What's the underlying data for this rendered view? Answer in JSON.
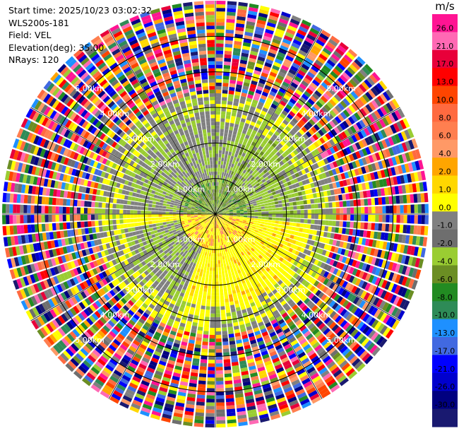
{
  "header": {
    "start_time": "Start time: 2025/10/23 03:02:32",
    "site": "WLS200s-181",
    "field": "Field: VEL",
    "elevation": "Elevation(deg): 35.00",
    "nrays": "NRays: 120"
  },
  "chart_data": {
    "type": "heatmap",
    "projection": "polar (PPI)",
    "field": "VEL",
    "unit": "m/s",
    "max_range_km": 6.0,
    "range_rings_km": [
      1,
      2,
      3,
      4,
      5
    ],
    "ring_labels": [
      "1.00km",
      "2.00km",
      "3.00km",
      "4.00km",
      "5.00km"
    ],
    "spokes_deg": [
      0,
      30,
      60,
      90,
      120,
      150,
      180,
      210,
      240,
      270,
      300,
      330
    ],
    "nrays": 120,
    "colorbar": {
      "ticks": [
        "26.0",
        "21.0",
        "17.0",
        "13.0",
        "10.0",
        "8.0",
        "6.0",
        "4.0",
        "2.0",
        "1.0",
        "0.0",
        "-1.0",
        "-2.0",
        "-4.0",
        "-6.0",
        "-8.0",
        "-10.0",
        "-13.0",
        "-17.0",
        "-21.0",
        "-26.0",
        "-30.0"
      ],
      "colors": [
        "#ff1493",
        "#ff69b4",
        "#e8003a",
        "#ff0000",
        "#ff4500",
        "#ff6a40",
        "#ff7f50",
        "#ff9966",
        "#ffa500",
        "#ffd700",
        "#ffff00",
        "#808080",
        "#6e6e6e",
        "#9acd32",
        "#6b8e23",
        "#228b22",
        "#2e8b57",
        "#1e90ff",
        "#4169e1",
        "#0000ff",
        "#0000cd",
        "#000080",
        "#191970"
      ]
    },
    "pattern": [
      {
        "range_km": [
          0.0,
          1.0
        ],
        "sector": "north",
        "values": "-1 to -6 (greens, grey)"
      },
      {
        "range_km": [
          0.0,
          1.0
        ],
        "sector": "south",
        "values": "2 to 8 (yellow, orange)"
      },
      {
        "range_km": [
          1.0,
          2.6
        ],
        "sector": "north",
        "values": "-1 to -4 (yellow-green, grey)"
      },
      {
        "range_km": [
          1.0,
          2.6
        ],
        "sector": "south",
        "values": "1 to 4 (yellow, gold)"
      },
      {
        "range_km": [
          2.6,
          3.3
        ],
        "sector": "all",
        "values": "mixed grey / yellow-green / yellow"
      },
      {
        "range_km": [
          3.3,
          6.0
        ],
        "sector": "all",
        "values": "noise, full colour range"
      }
    ]
  }
}
